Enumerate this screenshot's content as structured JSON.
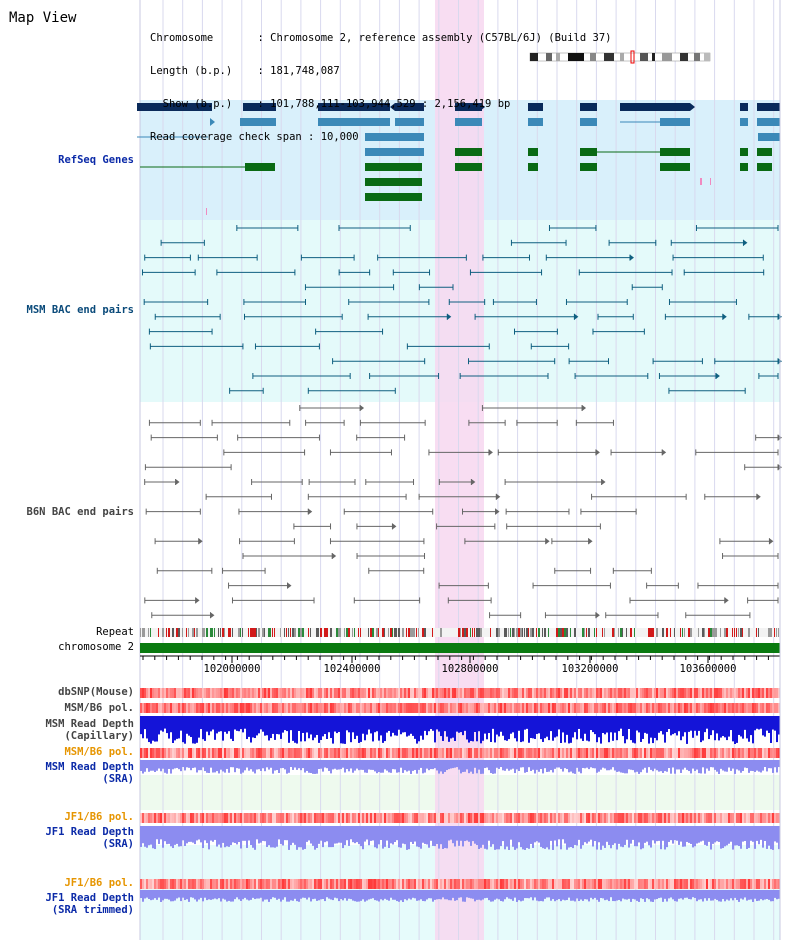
{
  "map_view": {
    "title": "Map View"
  },
  "header": {
    "rows": [
      {
        "key": "Chromosome       ",
        "value": "Chromosome 2, reference assembly (C57BL/6J) (Build 37)"
      },
      {
        "key": "Length (b.p.)    ",
        "value": "181,748,087"
      },
      {
        "key": "  Show (b.p.)    ",
        "value": "101,788,111-103,944,529 : 2,156,419 bp"
      },
      {
        "key": "Read coverage check span ",
        "value": "10,000"
      }
    ]
  },
  "tracks": {
    "refseq": "RefSeq Genes",
    "msm_bac": "MSM BAC end pairs",
    "b6n_bac": "B6N BAC end pairs",
    "repeat": "Repeat",
    "chromosome": "chromosome 2",
    "dbsnp": "dbSNP(Mouse)",
    "msm_b6_pol_1": "MSM/B6 pol.",
    "msm_depth_cap_1": "MSM Read Depth",
    "msm_depth_cap_2": "(Capillary)",
    "msm_b6_pol_2": "MSM/B6 pol.",
    "msm_depth_sra_1": "MSM Read Depth",
    "msm_depth_sra_2": "(SRA)",
    "jf1_b6_pol_1": "JF1/B6 pol.",
    "jf1_depth_sra_1": "JF1 Read Depth",
    "jf1_depth_sra_2": "(SRA)",
    "jf1_b6_pol_2": "JF1/B6 pol.",
    "jf1_depth_trim_1": "JF1 Read Depth",
    "jf1_depth_trim_2": "(SRA trimmed)"
  },
  "axis": {
    "ticks": [
      "102000000",
      "102400000",
      "102800000",
      "103200000",
      "103600000"
    ]
  },
  "colors": {
    "refseq_dark": "#0a2a5a",
    "refseq_mid": "#3b89b8",
    "refseq_green": "#0a6a14",
    "bac_msm": "#0f5f80",
    "bac_b6n": "#666666",
    "chromosome": "#0a7a10",
    "highlight": "#f7d7f0",
    "depth_cap": "#1414d8",
    "depth_sra": "#8c8cf0"
  }
}
